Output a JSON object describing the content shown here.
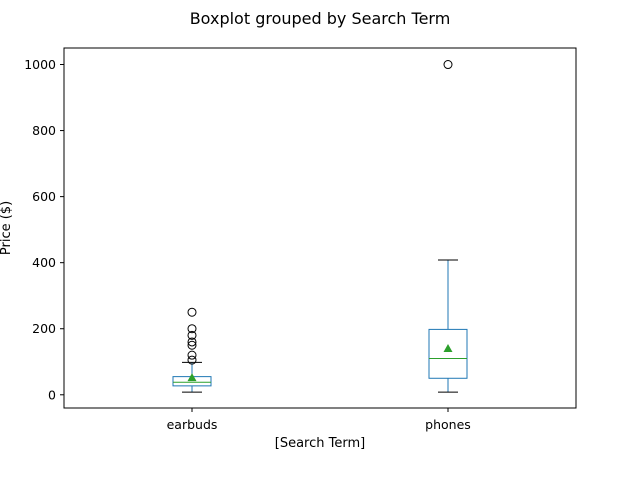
{
  "chart_data": {
    "type": "boxplot",
    "title": "Boxplot grouped by Search Term",
    "xlabel": "[Search Term]",
    "ylabel": "Price ($)",
    "ylim": [
      -40,
      1050
    ],
    "yticks": [
      0,
      200,
      400,
      600,
      800,
      1000
    ],
    "grid": false,
    "categories": [
      "earbuds",
      "phones"
    ],
    "boxes": [
      {
        "name": "earbuds",
        "whisker_low": 8,
        "q1": 27,
        "median": 38,
        "q3": 55,
        "whisker_high": 98,
        "mean": 52,
        "outliers": [
          105,
          120,
          150,
          160,
          180,
          200,
          250
        ]
      },
      {
        "name": "phones",
        "whisker_low": 8,
        "q1": 50,
        "median": 110,
        "q3": 198,
        "whisker_high": 408,
        "mean": 140,
        "outliers": [
          1000
        ]
      }
    ],
    "colors": {
      "box": "#1f77b4",
      "whisker": "#1f77b4",
      "cap": "#000000",
      "median": "#2ca02c",
      "mean": "#2ca02c",
      "outlier": "#000000"
    }
  }
}
